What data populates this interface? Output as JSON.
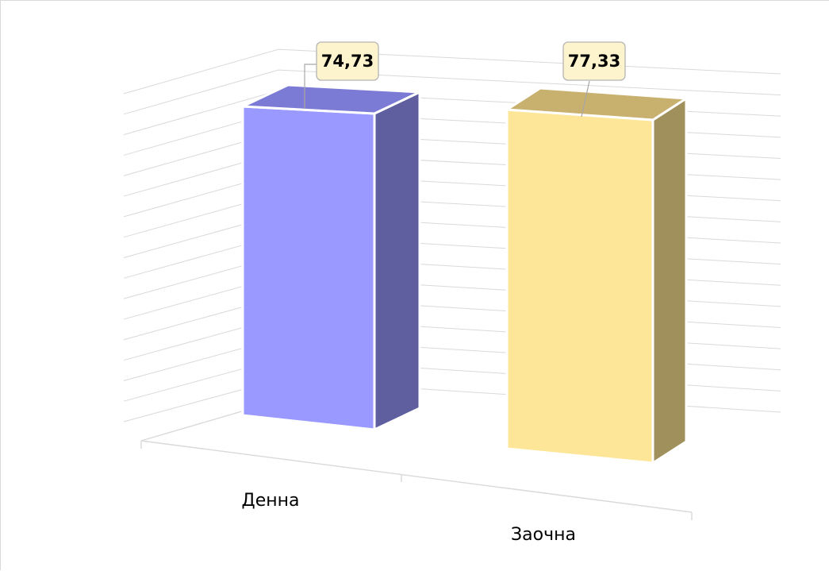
{
  "chart_data": {
    "type": "bar",
    "style": "3d-column",
    "title": "",
    "categories": [
      "Денна",
      "Заочна"
    ],
    "values": [
      74.73,
      77.33
    ],
    "value_labels": [
      "74,73",
      "77,33"
    ],
    "ylim": [
      0,
      80
    ],
    "grid": true,
    "legend": "none",
    "colors": {
      "bar_1_front": "#9999ff",
      "bar_1_top": "#7b7bd6",
      "bar_1_side": "#5f5f9f",
      "bar_2_front": "#fee699",
      "bar_2_top": "#c8b06f",
      "bar_2_side": "#a0905c",
      "label_fill": "#fdf3cd",
      "gridline": "#d9d9d9"
    }
  }
}
